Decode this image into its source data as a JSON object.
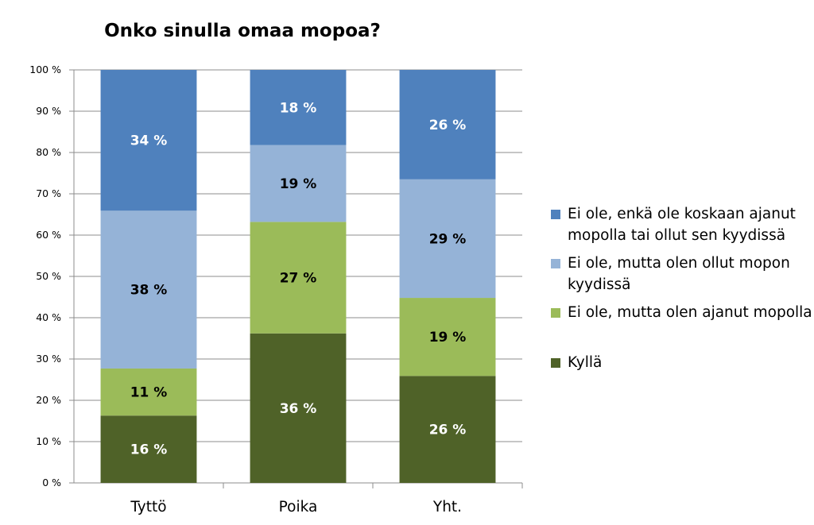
{
  "chart_data": {
    "type": "bar",
    "stacked": true,
    "title": "Onko sinulla omaa mopoa?",
    "categories": [
      "Tyttö",
      "Poika",
      "Yht."
    ],
    "ylim": [
      0,
      100
    ],
    "yticks": [
      "0 %",
      "10 %",
      "20 %",
      "30 %",
      "40 %",
      "50 %",
      "60 %",
      "70 %",
      "80 %",
      "90 %",
      "100 %"
    ],
    "grid": true,
    "legend_position": "right",
    "series": [
      {
        "name": "Kyllä",
        "color": "#4f6228",
        "values": [
          16.3,
          36.2,
          25.9
        ],
        "labels": [
          "16 %",
          "36 %",
          "26 %"
        ],
        "label_color": "#ffffff"
      },
      {
        "name": "Ei ole, mutta olen ajanut mopolla",
        "color": "#9bbb59",
        "values": [
          11.4,
          27.0,
          18.9
        ],
        "labels": [
          "11 %",
          "27 %",
          "19 %"
        ],
        "label_color": "#000000"
      },
      {
        "name": "Ei ole, mutta olen ollut mopon kyydissä",
        "color": "#95b3d7",
        "values": [
          38.2,
          18.6,
          28.7
        ],
        "labels": [
          "38 %",
          "19 %",
          "29 %"
        ],
        "label_color": "#000000"
      },
      {
        "name": "Ei ole, enkä ole koskaan ajanut mopolla tai ollut sen kyydissä",
        "color": "#4f81bd",
        "values": [
          34.1,
          18.2,
          26.5
        ],
        "labels": [
          "34 %",
          "18 %",
          "26 %"
        ],
        "label_color": "#ffffff"
      }
    ]
  }
}
